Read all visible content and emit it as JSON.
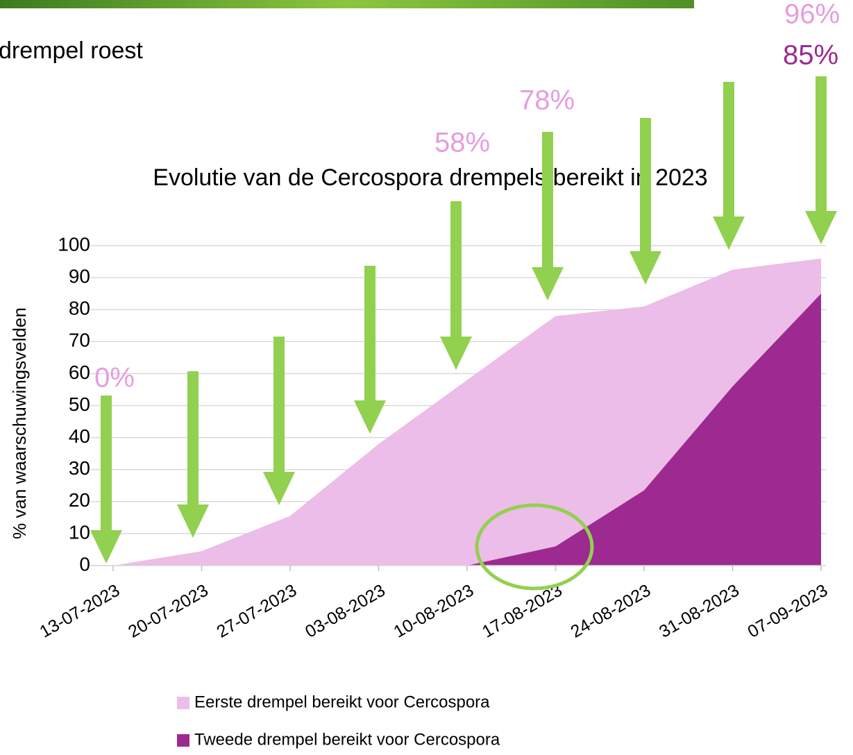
{
  "slide_text": "drempel roest",
  "chart_data": {
    "type": "area",
    "title": "Evolutie van de Cercospora drempels bereikt in 2023",
    "y_label": "% van waarschuwingsvelden",
    "categories": [
      "13-07-2023",
      "20-07-2023",
      "27-07-2023",
      "03-08-2023",
      "10-08-2023",
      "17-08-2023",
      "24-08-2023",
      "31-08-2023",
      "07-09-2023"
    ],
    "series": [
      {
        "name": "Eerste drempel bereikt voor Cercospora",
        "color": "#ecbde8",
        "values": [
          0,
          4.5,
          15.5,
          38,
          58,
          78,
          81,
          92.5,
          96
        ]
      },
      {
        "name": "Tweede drempel bereikt voor Cercospora",
        "color": "#9c2a90",
        "values": [
          null,
          null,
          null,
          null,
          0,
          6,
          23.5,
          56,
          85
        ]
      }
    ],
    "ylim": [
      0,
      100
    ],
    "yticks": [
      0,
      10,
      20,
      30,
      40,
      50,
      60,
      70,
      80,
      90,
      100
    ],
    "grid": true,
    "annotations": [
      {
        "text": "0%",
        "color": "#e69ce0"
      },
      {
        "text": "58%",
        "color": "#e69ce0"
      },
      {
        "text": "78%",
        "color": "#e69ce0"
      },
      {
        "text": "96%",
        "color": "#e69ce0"
      },
      {
        "text": "85%",
        "color": "#9c2a90"
      }
    ]
  }
}
